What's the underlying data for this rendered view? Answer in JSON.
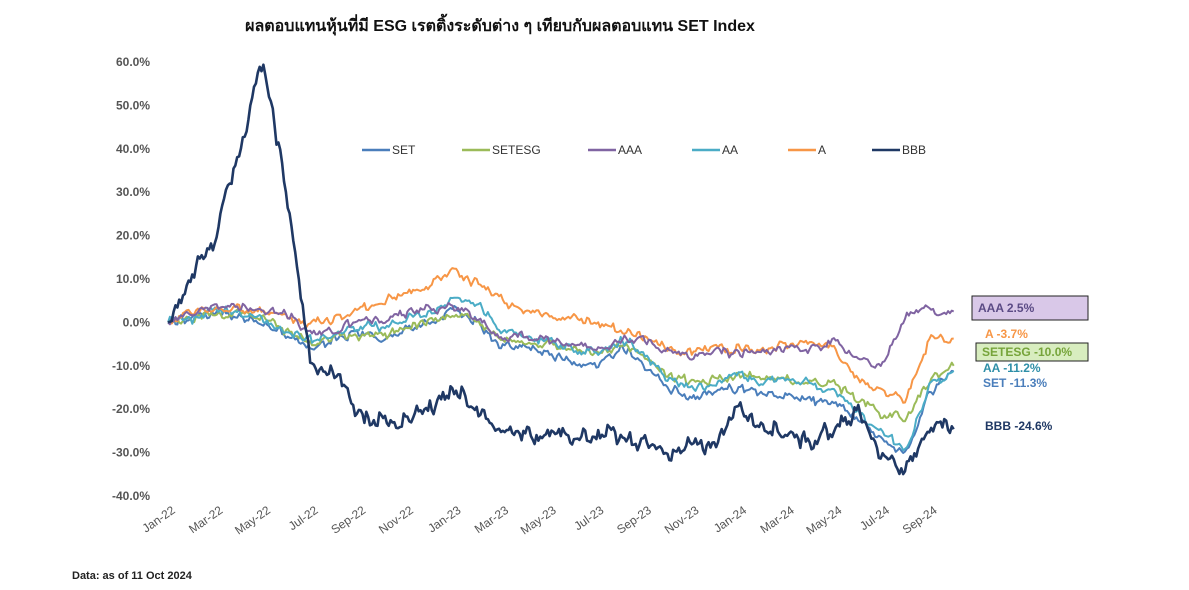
{
  "title": "ผลตอบแทนหุ้นที่มี ESG เรตติ้งระดับต่าง ๆ เทียบกับผลตอบแทน SET Index",
  "footnote": "Data: as of 11 Oct 2024",
  "chart_data": {
    "type": "line",
    "ylim": [
      -40,
      60
    ],
    "y_ticks": [
      "60.0%",
      "50.0%",
      "40.0%",
      "30.0%",
      "20.0%",
      "10.0%",
      "0.0%",
      "-10.0%",
      "-20.0%",
      "-30.0%",
      "-40.0%"
    ],
    "x_ticks": [
      "Jan-22",
      "Mar-22",
      "May-22",
      "Jul-22",
      "Sep-22",
      "Nov-22",
      "Jan-23",
      "Mar-23",
      "May-23",
      "Jul-23",
      "Sep-23",
      "Nov-23",
      "Jan-24",
      "Mar-24",
      "May-24",
      "Jul-24",
      "Sep-24"
    ],
    "x_end": "Oct-24",
    "legend_placement": "top",
    "series": [
      {
        "name": "SET",
        "color": "#4A7EBB",
        "x": [
          "Jan-22",
          "Feb-22",
          "Mar-22",
          "Apr-22",
          "May-22",
          "Jun-22",
          "Jul-22",
          "Aug-22",
          "Sep-22",
          "Oct-22",
          "Nov-22",
          "Dec-22",
          "Jan-23",
          "Feb-23",
          "Mar-23",
          "Apr-23",
          "May-23",
          "Jun-23",
          "Jul-23",
          "Aug-23",
          "Sep-23",
          "Oct-23",
          "Nov-23",
          "Dec-23",
          "Jan-24",
          "Feb-24",
          "Mar-24",
          "Apr-24",
          "May-24",
          "Jun-24",
          "Jul-24",
          "Aug-24",
          "Sep-24",
          "Oct-24"
        ],
        "values": [
          0,
          1,
          2,
          1,
          0,
          -3,
          -6,
          -4,
          -2,
          -4,
          -2,
          0,
          3,
          0,
          -5,
          -6,
          -7,
          -9,
          -10,
          -6,
          -10,
          -15,
          -17,
          -16,
          -15,
          -17,
          -17,
          -18,
          -19,
          -22,
          -27,
          -30,
          -16,
          -11.3
        ]
      },
      {
        "name": "SETESG",
        "color": "#9BBB59",
        "x": [
          "Jan-22",
          "Feb-22",
          "Mar-22",
          "Apr-22",
          "May-22",
          "Jun-22",
          "Jul-22",
          "Aug-22",
          "Sep-22",
          "Oct-22",
          "Nov-22",
          "Dec-22",
          "Jan-23",
          "Feb-23",
          "Mar-23",
          "Apr-23",
          "May-23",
          "Jun-23",
          "Jul-23",
          "Aug-23",
          "Sep-23",
          "Oct-23",
          "Nov-23",
          "Dec-23",
          "Jan-24",
          "Feb-24",
          "Mar-24",
          "Apr-24",
          "May-24",
          "Jun-24",
          "Jul-24",
          "Aug-24",
          "Sep-24",
          "Oct-24"
        ],
        "values": [
          0,
          1,
          2,
          2,
          1,
          -2,
          -5,
          -3,
          -3,
          -3,
          -1,
          0,
          2,
          0,
          -4,
          -5,
          -5,
          -6,
          -7,
          -5,
          -8,
          -12,
          -14,
          -13,
          -12,
          -13,
          -13,
          -14,
          -14,
          -18,
          -21,
          -22,
          -13,
          -10.0
        ]
      },
      {
        "name": "AAA",
        "color": "#8064A2",
        "x": [
          "Jan-22",
          "Feb-22",
          "Mar-22",
          "Apr-22",
          "May-22",
          "Jun-22",
          "Jul-22",
          "Aug-22",
          "Sep-22",
          "Oct-22",
          "Nov-22",
          "Dec-22",
          "Jan-23",
          "Feb-23",
          "Mar-23",
          "Apr-23",
          "May-23",
          "Jun-23",
          "Jul-23",
          "Aug-23",
          "Sep-23",
          "Oct-23",
          "Nov-23",
          "Dec-23",
          "Jan-24",
          "Feb-24",
          "Mar-24",
          "Apr-24",
          "May-24",
          "Jun-24",
          "Jul-24",
          "Aug-24",
          "Sep-24",
          "Oct-24"
        ],
        "values": [
          0,
          2,
          4,
          3,
          3,
          2,
          -3,
          -2,
          1,
          0,
          2,
          3,
          4,
          1,
          -4,
          -3,
          -4,
          -5,
          -6,
          -4,
          -4,
          -7,
          -8,
          -7,
          -7,
          -7,
          -6,
          -6,
          -4,
          -8,
          -10,
          2,
          3,
          2.5
        ]
      },
      {
        "name": "AA",
        "color": "#4BACC6",
        "x": [
          "Jan-22",
          "Feb-22",
          "Mar-22",
          "Apr-22",
          "May-22",
          "Jun-22",
          "Jul-22",
          "Aug-22",
          "Sep-22",
          "Oct-22",
          "Nov-22",
          "Dec-22",
          "Jan-23",
          "Feb-23",
          "Mar-23",
          "Apr-23",
          "May-23",
          "Jun-23",
          "Jul-23",
          "Aug-23",
          "Sep-23",
          "Oct-23",
          "Nov-23",
          "Dec-23",
          "Jan-24",
          "Feb-24",
          "Mar-24",
          "Apr-24",
          "May-24",
          "Jun-24",
          "Jul-24",
          "Aug-24",
          "Sep-24",
          "Oct-24"
        ],
        "values": [
          0,
          1,
          3,
          2,
          1,
          -2,
          -4,
          -3,
          -1,
          -1,
          1,
          2,
          6,
          4,
          -2,
          -3,
          -4,
          -6,
          -7,
          -4,
          -7,
          -13,
          -15,
          -14,
          -12,
          -14,
          -13,
          -14,
          -16,
          -21,
          -25,
          -30,
          -14,
          -11.2
        ]
      },
      {
        "name": "A",
        "color": "#F79646",
        "x": [
          "Jan-22",
          "Feb-22",
          "Mar-22",
          "Apr-22",
          "May-22",
          "Jun-22",
          "Jul-22",
          "Aug-22",
          "Sep-22",
          "Oct-22",
          "Nov-22",
          "Dec-22",
          "Jan-23",
          "Feb-23",
          "Mar-23",
          "Apr-23",
          "May-23",
          "Jun-23",
          "Jul-23",
          "Aug-23",
          "Sep-23",
          "Oct-23",
          "Nov-23",
          "Dec-23",
          "Jan-24",
          "Feb-24",
          "Mar-24",
          "Apr-24",
          "May-24",
          "Jun-24",
          "Jul-24",
          "Aug-24",
          "Sep-24",
          "Oct-24"
        ],
        "values": [
          0,
          2,
          3,
          3,
          2,
          1,
          0,
          1,
          3,
          5,
          7,
          9,
          12,
          9,
          5,
          2,
          2,
          1,
          0,
          -2,
          -3,
          -6,
          -7,
          -6,
          -6,
          -7,
          -5,
          -5,
          -6,
          -13,
          -16,
          -18,
          -4,
          -3.7
        ]
      },
      {
        "name": "BBB",
        "color": "#1F3864",
        "x": [
          "Jan-22",
          "Feb-22",
          "Mar-22",
          "Apr-22",
          "May-22",
          "Jun-22",
          "Jul-22",
          "Aug-22",
          "Sep-22",
          "Oct-22",
          "Nov-22",
          "Dec-22",
          "Jan-23",
          "Feb-23",
          "Mar-23",
          "Apr-23",
          "May-23",
          "Jun-23",
          "Jul-23",
          "Aug-23",
          "Sep-23",
          "Oct-23",
          "Nov-23",
          "Dec-23",
          "Jan-24",
          "Feb-24",
          "Mar-24",
          "Apr-24",
          "May-24",
          "Jun-24",
          "Jul-24",
          "Aug-24",
          "Sep-24",
          "Oct-24"
        ],
        "values": [
          0,
          10,
          20,
          40,
          60,
          30,
          -10,
          -12,
          -20,
          -24,
          -22,
          -20,
          -16,
          -20,
          -24,
          -25,
          -26,
          -27,
          -26,
          -26,
          -28,
          -30,
          -29,
          -28,
          -20,
          -24,
          -26,
          -27,
          -25,
          -21,
          -31,
          -34,
          -24,
          -24.6
        ]
      }
    ],
    "end_labels": [
      {
        "series": "AAA",
        "text": "AAA 2.5%",
        "color": "#5B4B85",
        "box": "#D9C8E8",
        "boxed": true
      },
      {
        "series": "A",
        "text": "A -3.7%",
        "color": "#F79646",
        "boxed": false
      },
      {
        "series": "SETESG",
        "text": "SETESG -10.0%",
        "color": "#76A43A",
        "box": "#D8EDBF",
        "boxed": true
      },
      {
        "series": "AA",
        "text": "AA -11.2%",
        "color": "#2E8FA8",
        "boxed": false
      },
      {
        "series": "SET",
        "text": "SET -11.3%",
        "color": "#4A7EBB",
        "boxed": false
      },
      {
        "series": "BBB",
        "text": "BBB -24.6%",
        "color": "#1F3864",
        "boxed": false
      }
    ]
  }
}
